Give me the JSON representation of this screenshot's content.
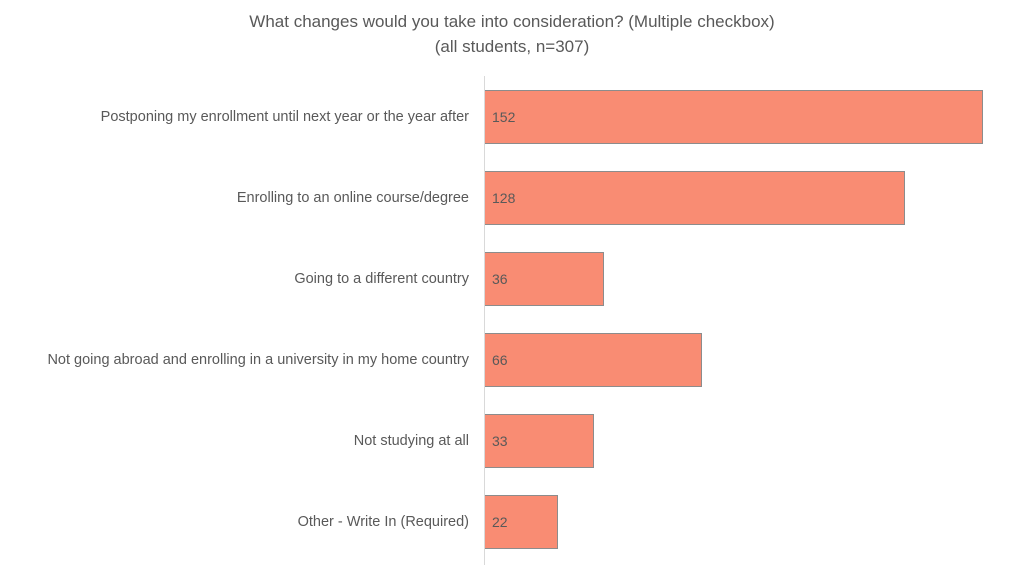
{
  "chart_data": {
    "type": "bar",
    "orientation": "horizontal",
    "title": "What changes would you take into consideration? (Multiple checkbox)",
    "subtitle": "(all students, n=307)",
    "xlabel": "",
    "ylabel": "",
    "grid": false,
    "legend": null,
    "bar_color": "#f98c73",
    "categories": [
      "Postponing my enrollment until next year or the year after",
      "Enrolling to an online course/degree",
      "Going to a different country",
      "Not going abroad and enrolling in a university in my home country",
      "Not studying at all",
      "Other - Write In (Required)"
    ],
    "values": [
      152,
      128,
      36,
      66,
      33,
      22
    ],
    "value_labels": [
      "152",
      "128",
      "36",
      "66",
      "33",
      "22"
    ]
  }
}
